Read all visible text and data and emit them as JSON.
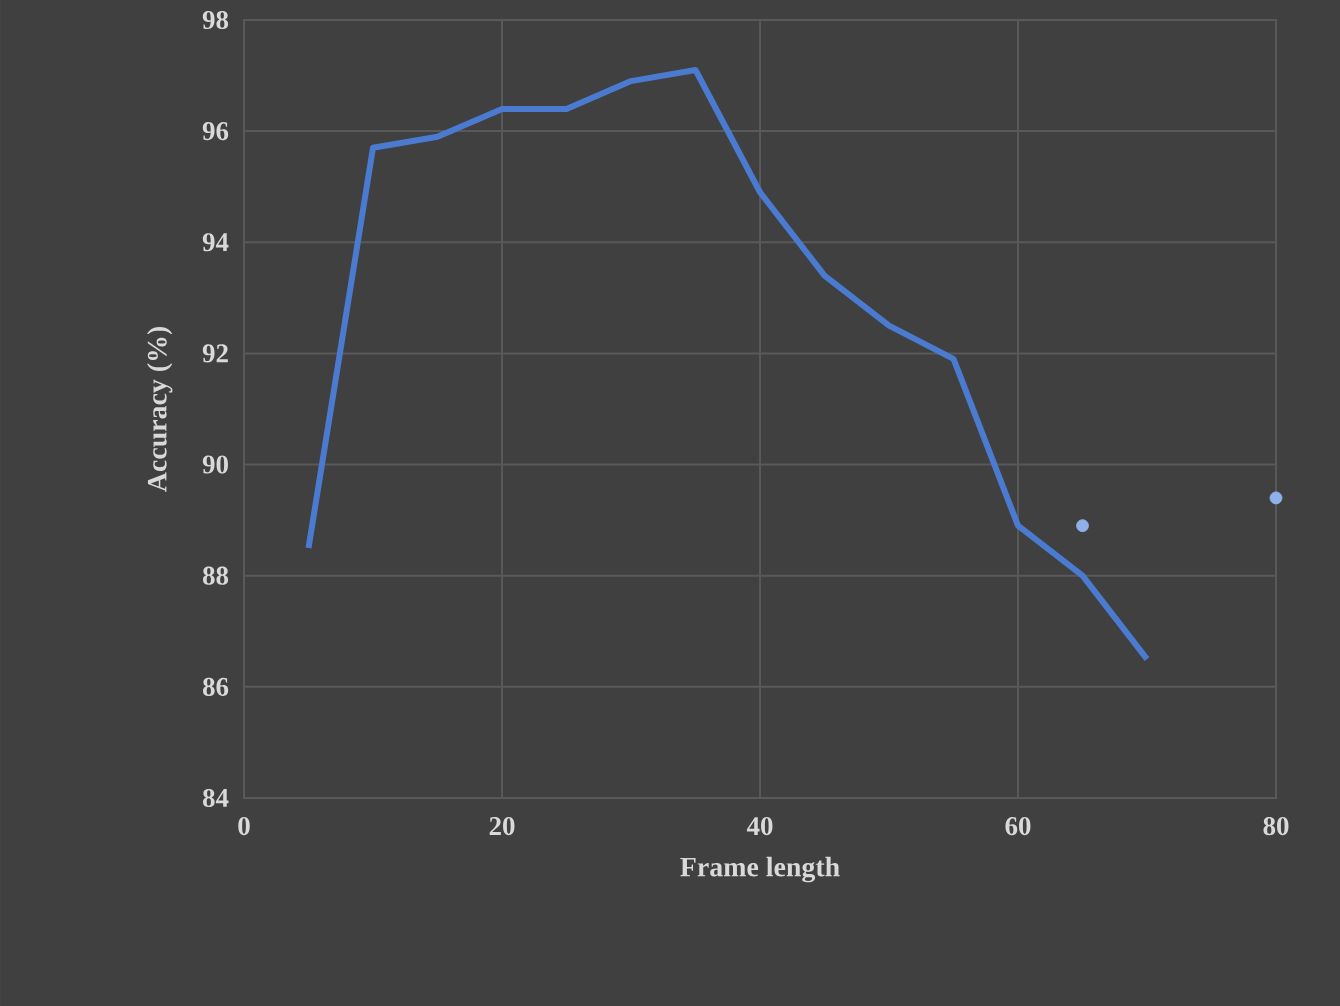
{
  "chart_data": {
    "type": "line",
    "xlabel": "Frame length",
    "ylabel": "Accuracy (%)",
    "xlim": [
      0,
      80
    ],
    "ylim": [
      84,
      98
    ],
    "xticks": [
      0,
      20,
      40,
      60,
      80
    ],
    "yticks": [
      84,
      86,
      88,
      90,
      92,
      94,
      96,
      98
    ],
    "grid": true,
    "series": [
      {
        "color": "#4a7bd0",
        "marker": "none",
        "x": [
          5,
          10,
          15,
          20,
          25,
          30,
          35,
          40,
          45,
          50,
          55,
          60,
          65,
          70
        ],
        "values": [
          88.5,
          95.7,
          95.9,
          96.4,
          96.4,
          96.9,
          97.1,
          94.9,
          93.4,
          92.5,
          91.9,
          88.9,
          88.0,
          86.5
        ]
      },
      {
        "type": "scatter",
        "color": "#8fb0e8",
        "marker": "circle",
        "x": [
          65,
          80
        ],
        "values": [
          88.9,
          89.4
        ]
      }
    ]
  }
}
